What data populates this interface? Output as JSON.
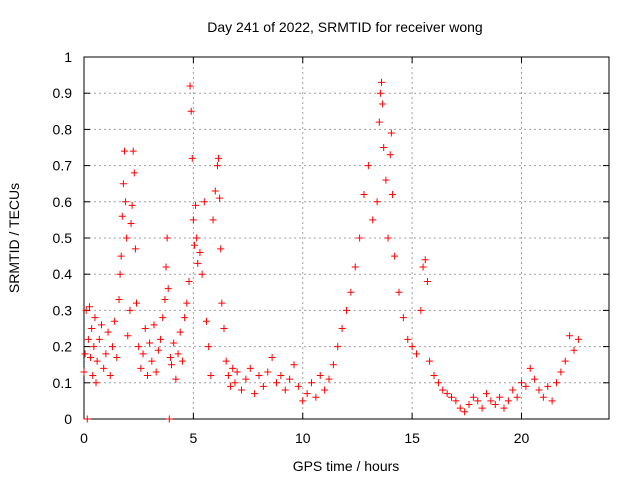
{
  "chart_data": {
    "type": "scatter",
    "title": "Day 241 of 2022, SRMTID for receiver wong",
    "xlabel": "GPS time / hours",
    "ylabel": "SRMTID / TECUs",
    "xlim": [
      0,
      24
    ],
    "ylim": [
      0,
      1
    ],
    "x_ticks": [
      0,
      5,
      10,
      15,
      20
    ],
    "x_tick_labels": [
      "0",
      "5",
      "10",
      "15",
      "20"
    ],
    "y_ticks": [
      0,
      0.1,
      0.2,
      0.3,
      0.4,
      0.5,
      0.6,
      0.7,
      0.8,
      0.9,
      1
    ],
    "y_tick_labels": [
      "0",
      "0.1",
      "0.2",
      "0.3",
      "0.4",
      "0.5",
      "0.6",
      "0.7",
      "0.8",
      "0.9",
      "1"
    ],
    "grid": true,
    "marker": "+",
    "color": "#ff0000",
    "series": [
      {
        "name": "SRMTID",
        "points": [
          [
            0.0,
            0.13
          ],
          [
            0.05,
            0.18
          ],
          [
            0.1,
            0.3
          ],
          [
            0.15,
            0.0
          ],
          [
            0.2,
            0.22
          ],
          [
            0.25,
            0.31
          ],
          [
            0.3,
            0.17
          ],
          [
            0.35,
            0.25
          ],
          [
            0.4,
            0.12
          ],
          [
            0.45,
            0.2
          ],
          [
            0.5,
            0.28
          ],
          [
            0.55,
            0.1
          ],
          [
            0.6,
            0.16
          ],
          [
            0.7,
            0.22
          ],
          [
            0.8,
            0.26
          ],
          [
            0.9,
            0.14
          ],
          [
            1.0,
            0.18
          ],
          [
            1.1,
            0.24
          ],
          [
            1.2,
            0.12
          ],
          [
            1.3,
            0.2
          ],
          [
            1.4,
            0.27
          ],
          [
            1.5,
            0.17
          ],
          [
            1.6,
            0.33
          ],
          [
            1.65,
            0.4
          ],
          [
            1.7,
            0.45
          ],
          [
            1.75,
            0.56
          ],
          [
            1.8,
            0.65
          ],
          [
            1.85,
            0.74
          ],
          [
            1.9,
            0.6
          ],
          [
            1.95,
            0.5
          ],
          [
            2.0,
            0.23
          ],
          [
            2.1,
            0.3
          ],
          [
            2.15,
            0.54
          ],
          [
            2.2,
            0.59
          ],
          [
            2.25,
            0.74
          ],
          [
            2.3,
            0.68
          ],
          [
            2.35,
            0.47
          ],
          [
            2.4,
            0.32
          ],
          [
            2.5,
            0.2
          ],
          [
            2.6,
            0.14
          ],
          [
            2.7,
            0.18
          ],
          [
            2.8,
            0.25
          ],
          [
            2.9,
            0.12
          ],
          [
            3.0,
            0.21
          ],
          [
            3.1,
            0.16
          ],
          [
            3.2,
            0.26
          ],
          [
            3.3,
            0.13
          ],
          [
            3.4,
            0.19
          ],
          [
            3.5,
            0.22
          ],
          [
            3.6,
            0.28
          ],
          [
            3.7,
            0.33
          ],
          [
            3.75,
            0.42
          ],
          [
            3.8,
            0.5
          ],
          [
            3.85,
            0.36
          ],
          [
            3.9,
            0.0
          ],
          [
            3.95,
            0.17
          ],
          [
            4.0,
            0.15
          ],
          [
            4.1,
            0.21
          ],
          [
            4.2,
            0.11
          ],
          [
            4.3,
            0.18
          ],
          [
            4.4,
            0.24
          ],
          [
            4.5,
            0.16
          ],
          [
            4.6,
            0.28
          ],
          [
            4.7,
            0.32
          ],
          [
            4.8,
            0.38
          ],
          [
            4.85,
            0.92
          ],
          [
            4.9,
            0.85
          ],
          [
            4.95,
            0.72
          ],
          [
            5.0,
            0.55
          ],
          [
            5.05,
            0.48
          ],
          [
            5.1,
            0.59
          ],
          [
            5.15,
            0.5
          ],
          [
            5.2,
            0.43
          ],
          [
            5.3,
            0.46
          ],
          [
            5.4,
            0.4
          ],
          [
            5.5,
            0.6
          ],
          [
            5.6,
            0.27
          ],
          [
            5.7,
            0.2
          ],
          [
            5.8,
            0.12
          ],
          [
            5.9,
            0.55
          ],
          [
            6.0,
            0.63
          ],
          [
            6.1,
            0.7
          ],
          [
            6.15,
            0.72
          ],
          [
            6.2,
            0.61
          ],
          [
            6.25,
            0.47
          ],
          [
            6.3,
            0.32
          ],
          [
            6.4,
            0.25
          ],
          [
            6.5,
            0.16
          ],
          [
            6.6,
            0.12
          ],
          [
            6.7,
            0.09
          ],
          [
            6.8,
            0.14
          ],
          [
            6.9,
            0.1
          ],
          [
            7.0,
            0.13
          ],
          [
            7.2,
            0.08
          ],
          [
            7.4,
            0.11
          ],
          [
            7.6,
            0.14
          ],
          [
            7.8,
            0.07
          ],
          [
            8.0,
            0.12
          ],
          [
            8.2,
            0.09
          ],
          [
            8.4,
            0.13
          ],
          [
            8.6,
            0.17
          ],
          [
            8.8,
            0.1
          ],
          [
            9.0,
            0.12
          ],
          [
            9.2,
            0.08
          ],
          [
            9.4,
            0.11
          ],
          [
            9.6,
            0.15
          ],
          [
            9.8,
            0.09
          ],
          [
            10.0,
            0.05
          ],
          [
            10.2,
            0.07
          ],
          [
            10.4,
            0.1
          ],
          [
            10.6,
            0.06
          ],
          [
            10.8,
            0.12
          ],
          [
            11.0,
            0.08
          ],
          [
            11.2,
            0.11
          ],
          [
            11.4,
            0.15
          ],
          [
            11.6,
            0.2
          ],
          [
            11.8,
            0.25
          ],
          [
            12.0,
            0.3
          ],
          [
            12.2,
            0.35
          ],
          [
            12.4,
            0.42
          ],
          [
            12.6,
            0.5
          ],
          [
            12.8,
            0.62
          ],
          [
            13.0,
            0.7
          ],
          [
            13.2,
            0.55
          ],
          [
            13.4,
            0.6
          ],
          [
            13.5,
            0.82
          ],
          [
            13.55,
            0.9
          ],
          [
            13.6,
            0.93
          ],
          [
            13.65,
            0.87
          ],
          [
            13.7,
            0.75
          ],
          [
            13.8,
            0.66
          ],
          [
            13.9,
            0.5
          ],
          [
            14.0,
            0.73
          ],
          [
            14.05,
            0.79
          ],
          [
            14.1,
            0.62
          ],
          [
            14.2,
            0.45
          ],
          [
            14.4,
            0.35
          ],
          [
            14.6,
            0.28
          ],
          [
            14.8,
            0.22
          ],
          [
            15.0,
            0.2
          ],
          [
            15.2,
            0.18
          ],
          [
            15.4,
            0.3
          ],
          [
            15.5,
            0.42
          ],
          [
            15.6,
            0.44
          ],
          [
            15.7,
            0.38
          ],
          [
            15.8,
            0.16
          ],
          [
            16.0,
            0.12
          ],
          [
            16.2,
            0.1
          ],
          [
            16.4,
            0.08
          ],
          [
            16.6,
            0.07
          ],
          [
            16.8,
            0.06
          ],
          [
            17.0,
            0.05
          ],
          [
            17.2,
            0.03
          ],
          [
            17.4,
            0.02
          ],
          [
            17.6,
            0.04
          ],
          [
            17.8,
            0.06
          ],
          [
            18.0,
            0.05
          ],
          [
            18.2,
            0.03
          ],
          [
            18.4,
            0.07
          ],
          [
            18.6,
            0.05
          ],
          [
            18.8,
            0.04
          ],
          [
            19.0,
            0.06
          ],
          [
            19.2,
            0.03
          ],
          [
            19.4,
            0.05
          ],
          [
            19.6,
            0.08
          ],
          [
            19.8,
            0.06
          ],
          [
            20.0,
            0.1
          ],
          [
            20.2,
            0.09
          ],
          [
            20.4,
            0.14
          ],
          [
            20.6,
            0.11
          ],
          [
            20.8,
            0.08
          ],
          [
            21.0,
            0.06
          ],
          [
            21.2,
            0.09
          ],
          [
            21.4,
            0.05
          ],
          [
            21.6,
            0.1
          ],
          [
            21.8,
            0.13
          ],
          [
            22.0,
            0.16
          ],
          [
            22.2,
            0.23
          ],
          [
            22.4,
            0.19
          ],
          [
            22.6,
            0.22
          ]
        ]
      }
    ]
  }
}
